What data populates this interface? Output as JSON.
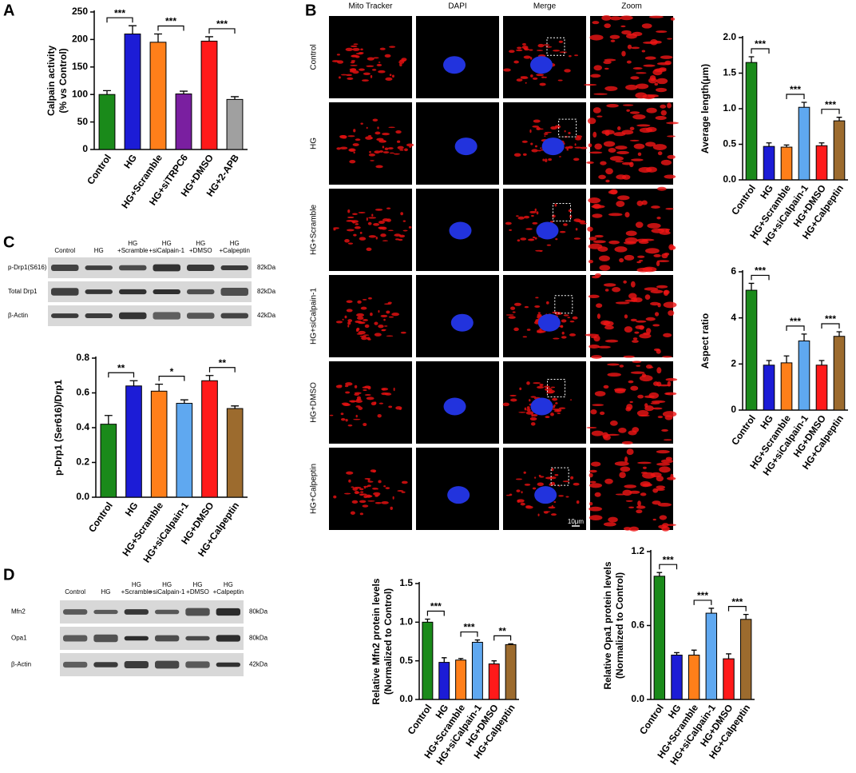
{
  "chart_data": [
    {
      "type": "bar",
      "panel": "A",
      "ylabel": [
        "Calpain activity",
        "(% vs Control)"
      ],
      "categories": [
        "Control",
        "HG",
        "HG+Scramble",
        "HG+siTRPC6",
        "HG+DMSO",
        "HG+2-APB"
      ],
      "values": [
        100,
        210,
        195,
        101,
        197,
        91
      ],
      "errors": [
        7,
        15,
        15,
        5,
        8,
        5
      ],
      "colors": [
        "#1a8a1a",
        "#1c1cd6",
        "#ff7f1a",
        "#7a1fa0",
        "#ff1a1a",
        "#a0a0a0"
      ],
      "ylim": [
        0,
        250
      ],
      "yticks": [
        0,
        50,
        100,
        150,
        200,
        250
      ],
      "annotations": [
        {
          "text": "***",
          "between": [
            "Control",
            "HG"
          ]
        },
        {
          "text": "***",
          "between": [
            "HG+Scramble",
            "HG+siTRPC6"
          ]
        },
        {
          "text": "***",
          "between": [
            "HG+DMSO",
            "HG+2-APB"
          ]
        }
      ]
    },
    {
      "type": "bar",
      "ylabel": [
        "p-Drp1 (Ser616)/Drp1"
      ],
      "categories": [
        "Control",
        "HG",
        "HG+Scramble",
        "HG+siCalpain-1",
        "HG+DMSO",
        "HG+Calpeptin"
      ],
      "values": [
        0.42,
        0.64,
        0.61,
        0.54,
        0.67,
        0.51
      ],
      "errors": [
        0.05,
        0.03,
        0.04,
        0.02,
        0.03,
        0.015
      ],
      "colors": [
        "#1a8a1a",
        "#1c1cd6",
        "#ff7f1a",
        "#5fa8f0",
        "#ff1a1a",
        "#9c6b2e"
      ],
      "ylim": [
        0,
        0.8
      ],
      "yticks": [
        {
          "value": 0,
          "label": "0.0"
        },
        0.2,
        0.4,
        0.6,
        0.8
      ],
      "annotations": [
        {
          "text": "**",
          "between": [
            "Control",
            "HG"
          ]
        },
        {
          "text": "*",
          "between": [
            "HG+Scramble",
            "HG+siCalpain-1"
          ]
        },
        {
          "text": "**",
          "between": [
            "HG+DMSO",
            "HG+Calpeptin"
          ]
        }
      ]
    },
    {
      "type": "bar",
      "ylabel": [
        "Average length(μm)"
      ],
      "categories": [
        "Control",
        "HG",
        "HG+Scramble",
        "HG+siCalpain-1",
        "HG+DMSO",
        "HG+Calpeptin"
      ],
      "values": [
        1.65,
        0.47,
        0.46,
        1.02,
        0.48,
        0.83
      ],
      "errors": [
        0.08,
        0.05,
        0.03,
        0.07,
        0.04,
        0.05
      ],
      "colors": [
        "#1a8a1a",
        "#1c1cd6",
        "#ff7f1a",
        "#5fa8f0",
        "#ff1a1a",
        "#9c6b2e"
      ],
      "ylim": [
        0,
        2
      ],
      "yticks": [
        {
          "value": 0,
          "label": "0.0"
        },
        0.5,
        {
          "value": 1,
          "label": "1.0"
        },
        1.5,
        {
          "value": 2,
          "label": "2.0"
        }
      ],
      "annotations": [
        {
          "text": "***",
          "between": [
            "Control",
            "HG"
          ]
        },
        {
          "text": "***",
          "between": [
            "HG+Scramble",
            "HG+siCalpain-1"
          ]
        },
        {
          "text": "***",
          "between": [
            "HG+DMSO",
            "HG+Calpeptin"
          ]
        }
      ]
    },
    {
      "type": "bar",
      "ylabel": [
        "Aspect ratio"
      ],
      "categories": [
        "Control",
        "HG",
        "HG+Scramble",
        "HG+siCalpain-1",
        "HG+DMSO",
        "HG+Calpeptin"
      ],
      "values": [
        5.2,
        1.95,
        2.05,
        3.0,
        1.95,
        3.2
      ],
      "errors": [
        0.3,
        0.2,
        0.3,
        0.3,
        0.2,
        0.2
      ],
      "colors": [
        "#1a8a1a",
        "#1c1cd6",
        "#ff7f1a",
        "#5fa8f0",
        "#ff1a1a",
        "#9c6b2e"
      ],
      "ylim": [
        0,
        6
      ],
      "yticks": [
        0,
        2,
        4,
        6
      ],
      "annotations": [
        {
          "text": "***",
          "between": [
            "Control",
            "HG"
          ]
        },
        {
          "text": "***",
          "between": [
            "HG+Scramble",
            "HG+siCalpain-1"
          ]
        },
        {
          "text": "***",
          "between": [
            "HG+DMSO",
            "HG+Calpeptin"
          ]
        }
      ]
    },
    {
      "type": "bar",
      "ylabel": [
        "Relative Mfn2 protein levels",
        "(Normalized to Control)"
      ],
      "categories": [
        "Control",
        "HG",
        "HG+Scramble",
        "HG+siCalpain-1",
        "HG+DMSO",
        "HG+Calpeptin"
      ],
      "values": [
        1.0,
        0.48,
        0.51,
        0.74,
        0.46,
        0.71
      ],
      "errors": [
        0.04,
        0.06,
        0.02,
        0.03,
        0.04,
        0.01
      ],
      "colors": [
        "#1a8a1a",
        "#1c1cd6",
        "#ff7f1a",
        "#5fa8f0",
        "#ff1a1a",
        "#9c6b2e"
      ],
      "ylim": [
        0,
        1.5
      ],
      "yticks": [
        {
          "value": 0,
          "label": "0.0"
        },
        0.5,
        {
          "value": 1,
          "label": "1.0"
        },
        1.5
      ],
      "annotations": [
        {
          "text": "***",
          "between": [
            "Control",
            "HG"
          ]
        },
        {
          "text": "***",
          "between": [
            "HG+Scramble",
            "HG+siCalpain-1"
          ]
        },
        {
          "text": "**",
          "between": [
            "HG+DMSO",
            "HG+Calpeptin"
          ]
        }
      ]
    },
    {
      "type": "bar",
      "ylabel": [
        "Relative Opa1 protein levels",
        "(Normalized to Control)"
      ],
      "categories": [
        "Control",
        "HG",
        "HG+Scramble",
        "HG+siCalpain-1",
        "HG+DMSO",
        "HG+Calpeptin"
      ],
      "values": [
        1.0,
        0.36,
        0.36,
        0.7,
        0.33,
        0.65
      ],
      "errors": [
        0.03,
        0.02,
        0.04,
        0.04,
        0.04,
        0.04
      ],
      "colors": [
        "#1a8a1a",
        "#1c1cd6",
        "#ff7f1a",
        "#5fa8f0",
        "#ff1a1a",
        "#9c6b2e"
      ],
      "ylim": [
        0,
        1.2
      ],
      "yticks": [
        {
          "value": 0,
          "label": "0.0"
        },
        0.6,
        1.2
      ],
      "annotations": [
        {
          "text": "***",
          "between": [
            "Control",
            "HG"
          ]
        },
        {
          "text": "***",
          "between": [
            "HG+Scramble",
            "HG+siCalpain-1"
          ]
        },
        {
          "text": "***",
          "between": [
            "HG+DMSO",
            "HG+Calpeptin"
          ]
        }
      ]
    }
  ],
  "panel_labels": {
    "b": "B",
    "c": "C",
    "d": "D"
  },
  "microscopy": {
    "columns": [
      "Mito Tracker",
      "DAPI",
      "Merge",
      "Zoom"
    ],
    "rows": [
      "Control",
      "HG",
      "HG+Scramble",
      "HG+siCalpain-1",
      "HG+DMSO",
      "HG+Calpeptin"
    ],
    "scale_bar": "10μm"
  },
  "blot_c": {
    "lanes": [
      [
        "Control"
      ],
      [
        "HG"
      ],
      [
        "HG",
        "+Scramble"
      ],
      [
        "HG",
        "+siCalpain-1"
      ],
      [
        "HG",
        "+DMSO"
      ],
      [
        "HG",
        "+Calpeptin"
      ]
    ],
    "rows": [
      {
        "name": "p-Drp1(S616)",
        "kda": "82kDa"
      },
      {
        "name": "Total Drp1",
        "kda": "82kDa"
      },
      {
        "name": "β-Actin",
        "kda": "42kDa"
      }
    ]
  },
  "blot_d": {
    "lanes": [
      [
        "Control"
      ],
      [
        "HG"
      ],
      [
        "HG",
        "+Scramble"
      ],
      [
        "HG",
        "+siCalpain-1"
      ],
      [
        "HG",
        "+DMSO"
      ],
      [
        "HG",
        "+Calpeptin"
      ]
    ],
    "rows": [
      {
        "name": "Mfn2",
        "kda": "80kDa"
      },
      {
        "name": "Opa1",
        "kda": "80kDa"
      },
      {
        "name": "β-Actin",
        "kda": "42kDa"
      }
    ]
  }
}
